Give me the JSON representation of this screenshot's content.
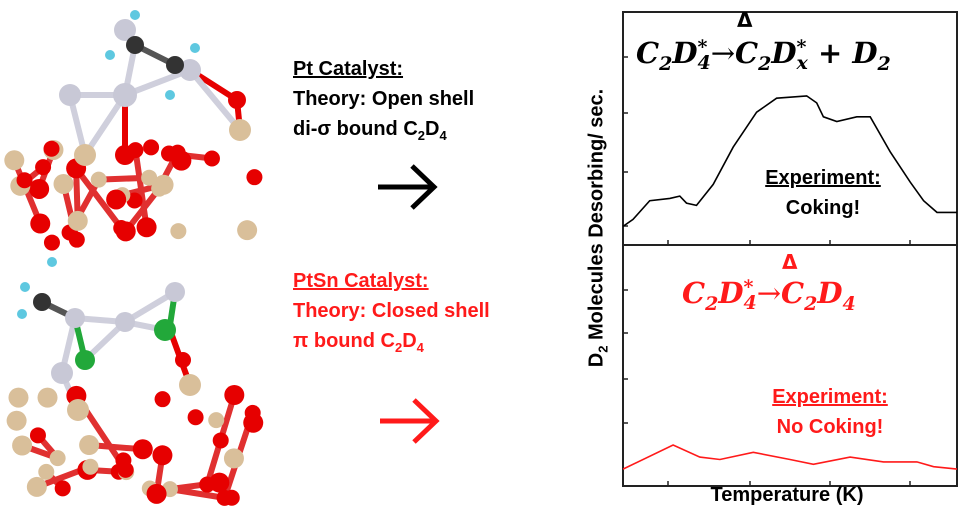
{
  "pt_panel": {
    "title": "Pt Catalyst:",
    "line1": "Theory: Open shell",
    "line2_prefix": "di-σ bound C",
    "line2_sub1": "2",
    "line2_mid": "D",
    "line2_sub2": "4"
  },
  "ptsn_panel": {
    "title": "PtSn Catalyst:",
    "line1": "Theory: Closed shell",
    "line2_prefix": "π bound C",
    "line2_sub1": "2",
    "line2_mid": "D",
    "line2_sub2": "4"
  },
  "colors": {
    "pt": "#000000",
    "ptsn": "#ff1a1a",
    "pt_atom": "#c8c8d6",
    "sn_atom": "#d9bf9a",
    "o_atom": "#e60000",
    "c_atom": "#333333",
    "d_atom": "#5ec8e0",
    "cl_atom": "#22a83a"
  },
  "chart_data": {
    "type": "line",
    "xlabel": "Temperature (K)",
    "ylabel_prefix": "D",
    "ylabel_sub": "2",
    "ylabel_rest": " Molecules Desorbing/ sec.",
    "x_range": [
      0,
      100
    ],
    "y_range": [
      0,
      1
    ],
    "x_unit": "arbitrary",
    "y_unit": "arbitrary",
    "panels": [
      {
        "name": "Pt",
        "equation": {
          "delta": "Δ",
          "lhs": "C",
          "lhs_s1": "2",
          "lhs_d": "D",
          "lhs_sup": "*",
          "lhs_s2": "4",
          "arrow": "→",
          "rhs": "C",
          "rhs_s1": "2",
          "rhs_d": "D",
          "rhs_sup": "*",
          "rhs_s2": "x",
          "plus": " + D",
          "plus_s": "2"
        },
        "annotation_title": "Experiment:",
        "annotation_text": "Coking!",
        "color": "#000000",
        "x": [
          0,
          3,
          8,
          14,
          17,
          19,
          22,
          27,
          33,
          40,
          46,
          55,
          58,
          60,
          64,
          70,
          74,
          80,
          86,
          90,
          94,
          100
        ],
        "y": [
          0.08,
          0.11,
          0.19,
          0.2,
          0.21,
          0.18,
          0.17,
          0.26,
          0.42,
          0.57,
          0.63,
          0.64,
          0.61,
          0.55,
          0.53,
          0.55,
          0.55,
          0.4,
          0.27,
          0.19,
          0.14,
          0.14
        ]
      },
      {
        "name": "PtSn",
        "equation": {
          "delta": "Δ",
          "lhs": "C",
          "lhs_s1": "2",
          "lhs_d": "D",
          "lhs_sup": "*",
          "lhs_s2": "4",
          "arrow": "→",
          "rhs": "C",
          "rhs_s1": "2",
          "rhs_d": "D",
          "rhs_s2": "4"
        },
        "annotation_title": "Experiment:",
        "annotation_text": "No Coking!",
        "color": "#ff1a1a",
        "x": [
          0,
          15,
          23,
          29,
          39,
          50,
          57,
          68,
          78,
          84,
          88,
          93,
          100
        ],
        "y": [
          0.07,
          0.17,
          0.12,
          0.11,
          0.14,
          0.11,
          0.09,
          0.12,
          0.1,
          0.1,
          0.1,
          0.08,
          0.07
        ]
      }
    ]
  }
}
